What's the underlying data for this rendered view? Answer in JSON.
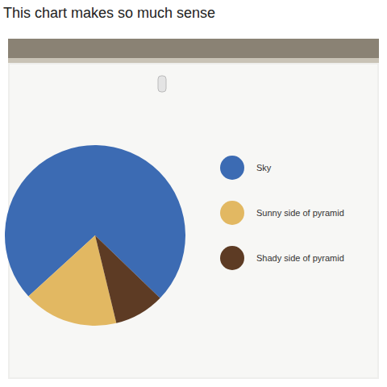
{
  "chart_data": {
    "type": "pie",
    "title": "This chart makes so much sense",
    "categories": [
      "Sky",
      "Sunny side of pyramid",
      "Shady side of pyramid"
    ],
    "values": [
      74,
      17,
      9
    ],
    "colors": [
      "#3c6bb3",
      "#e2b862",
      "#5d3b24"
    ],
    "legend": "right"
  }
}
